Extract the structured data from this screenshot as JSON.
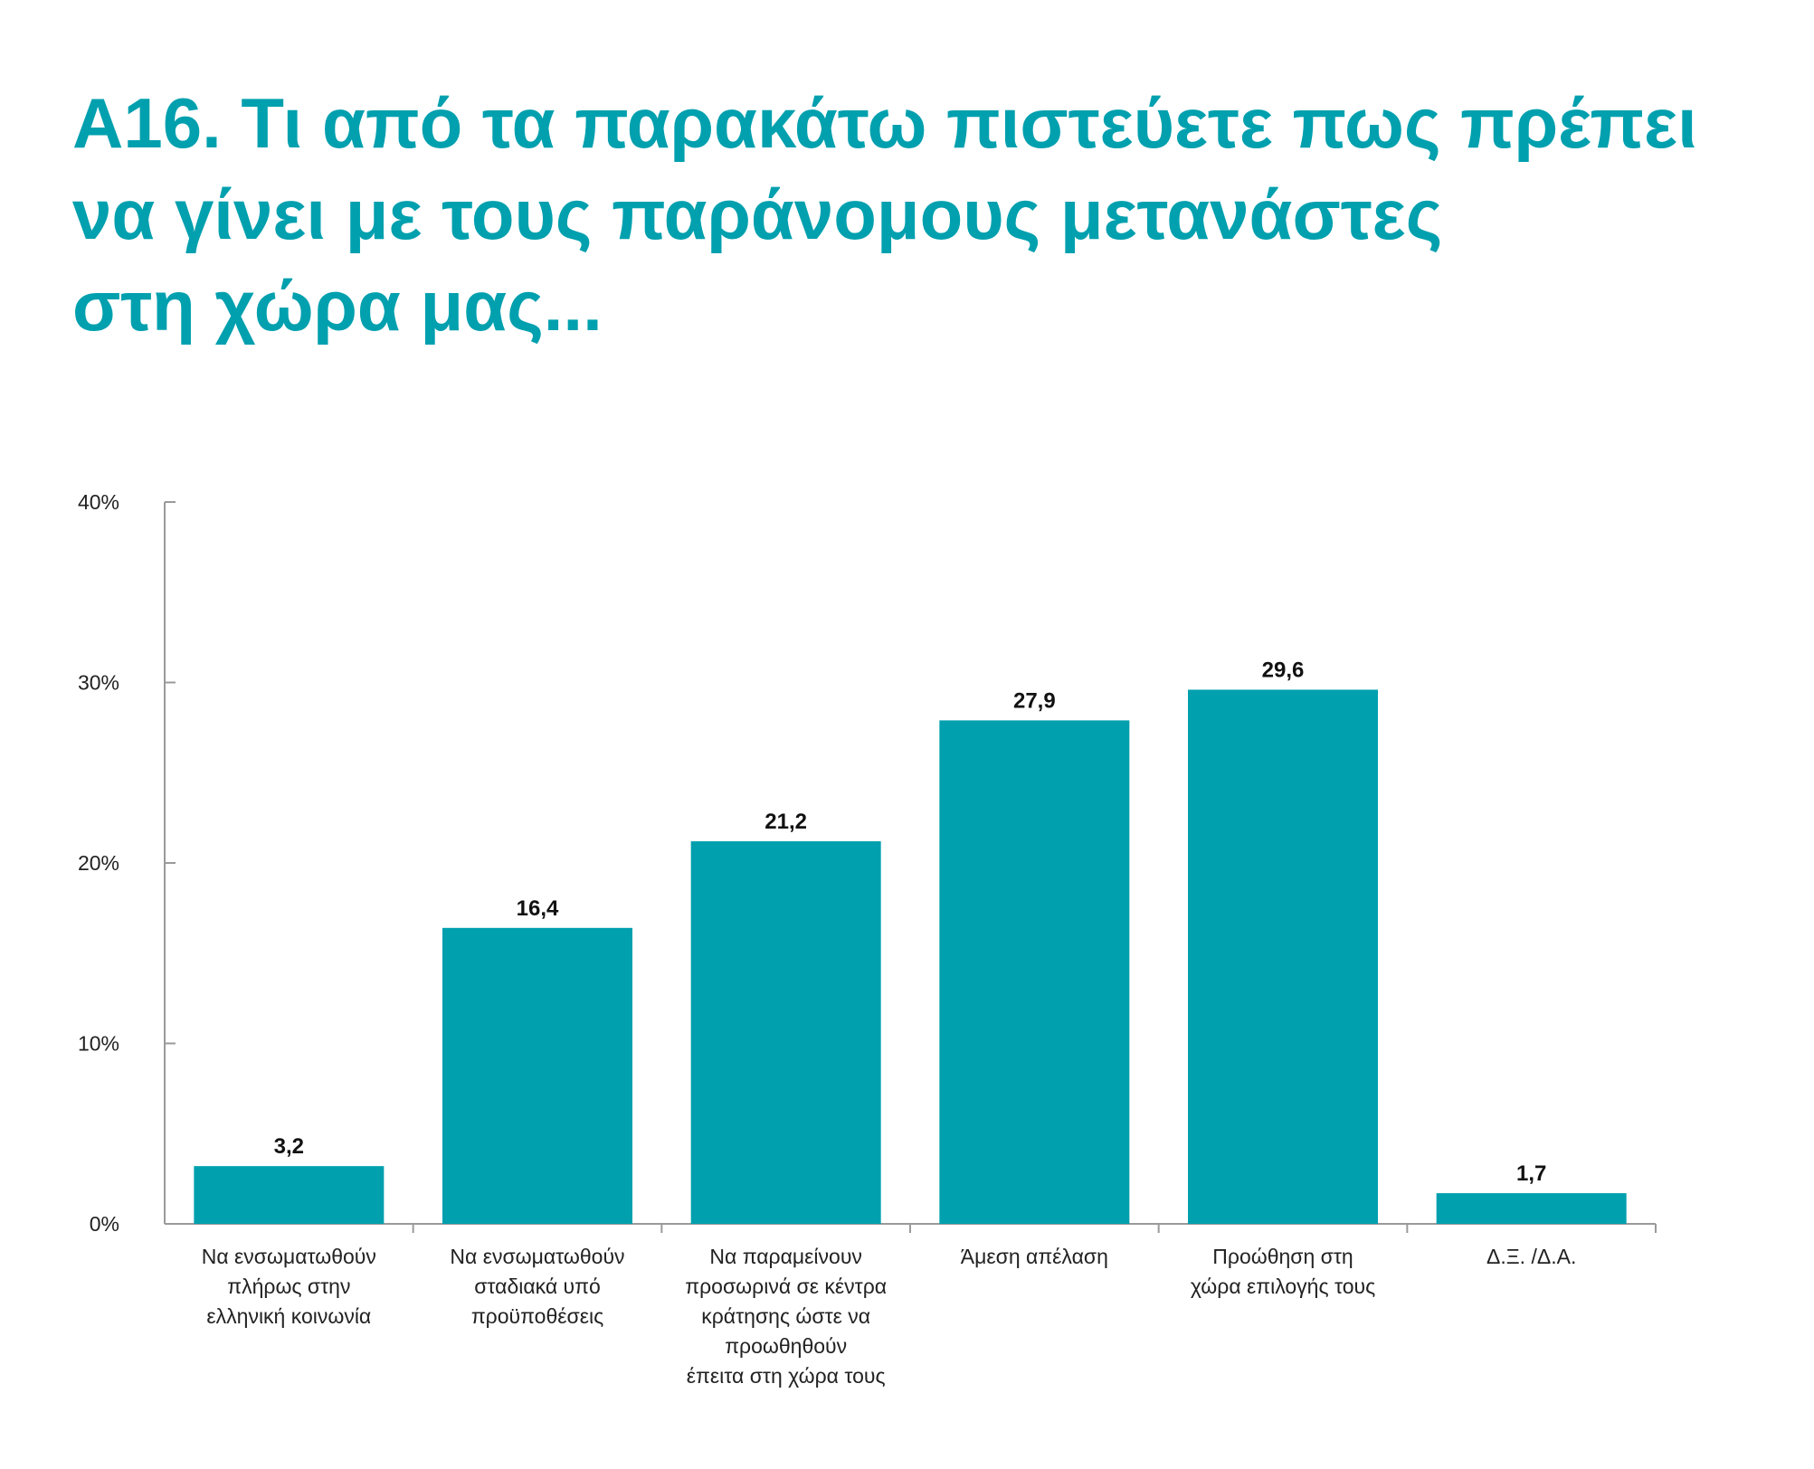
{
  "title_lines": [
    "Α16. Τι από τα παρακάτω πιστεύετε πως πρέπει",
    "να γίνει με τους παράνομους μετανάστες",
    "στη χώρα μας..."
  ],
  "chart_data": {
    "type": "bar",
    "title": "Α16. Τι από τα παρακάτω πιστεύετε πως πρέπει να γίνει με τους παράνομους μετανάστες στη χώρα μας...",
    "categories": [
      [
        "Να ενσωματωθούν",
        "πλήρως στην",
        "ελληνική κοινωνία"
      ],
      [
        "Να ενσωματωθούν",
        "σταδιακά υπό",
        "προϋποθέσεις"
      ],
      [
        "Να παραμείνουν",
        "προσωρινά σε κέντρα",
        "κράτησης ώστε να",
        "προωθηθούν",
        "έπειτα στη χώρα τους"
      ],
      [
        "Άμεση απέλαση"
      ],
      [
        "Προώθηση στη",
        "χώρα επιλογής τους"
      ],
      [
        "Δ.Ξ. /Δ.Α."
      ]
    ],
    "values": [
      3.2,
      16.4,
      21.2,
      27.9,
      29.6,
      1.7
    ],
    "value_labels": [
      "3,2",
      "16,4",
      "21,2",
      "27,9",
      "29,6",
      "1,7"
    ],
    "ylim": [
      0,
      40
    ],
    "yticks": [
      0,
      10,
      20,
      30,
      40
    ],
    "ytick_labels": [
      "0%",
      "10%",
      "20%",
      "30%",
      "40%"
    ],
    "xlabel": "",
    "ylabel": "",
    "grid": false,
    "legend": "none",
    "bar_color": "#00a0ae",
    "axis_color": "#9a9a9a"
  }
}
